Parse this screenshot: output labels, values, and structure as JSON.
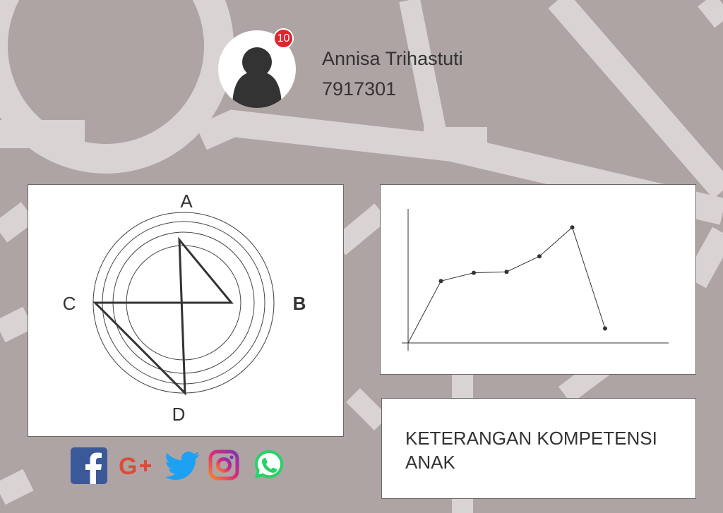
{
  "profile": {
    "name": "Annisa Trihastuti",
    "id_number": "7917301",
    "notification_count": "10",
    "avatar_icon": "user-silhouette-icon"
  },
  "radar_chart": {
    "axes": [
      "A",
      "B",
      "C",
      "D"
    ],
    "bold_axis": "B",
    "rings": 4
  },
  "chart_data": [
    {
      "type": "line",
      "title": "",
      "xlabel": "",
      "ylabel": "",
      "x": [
        0,
        1,
        2,
        3,
        4,
        5,
        6
      ],
      "values": [
        0,
        3,
        3.4,
        3.45,
        4.2,
        5.6,
        0.7
      ],
      "xlim": [
        -0.2,
        7.3
      ],
      "ylim": [
        0,
        6.5
      ],
      "grid": false,
      "marker": "dot"
    },
    {
      "type": "radar",
      "categories": [
        "A",
        "B",
        "C",
        "D"
      ],
      "values": [
        0.71,
        0.54,
        1.0,
        1.0
      ],
      "max": 1
    }
  ],
  "description": {
    "text": "KETERANGAN KOMPETENSI ANAK"
  },
  "social": [
    {
      "icon": "facebook-icon",
      "color": "#3b5998"
    },
    {
      "icon": "google-plus-icon",
      "color": "#dd4b39"
    },
    {
      "icon": "twitter-icon",
      "color": "#1da1f2"
    },
    {
      "icon": "instagram-icon",
      "color": "#c13584"
    },
    {
      "icon": "whatsapp-icon",
      "color": "#25d366"
    }
  ],
  "colors": {
    "background": "#aea4a4",
    "road": "#d9d4d3",
    "panel": "#ffffff",
    "text": "#333333",
    "badge": "#e0242c"
  }
}
